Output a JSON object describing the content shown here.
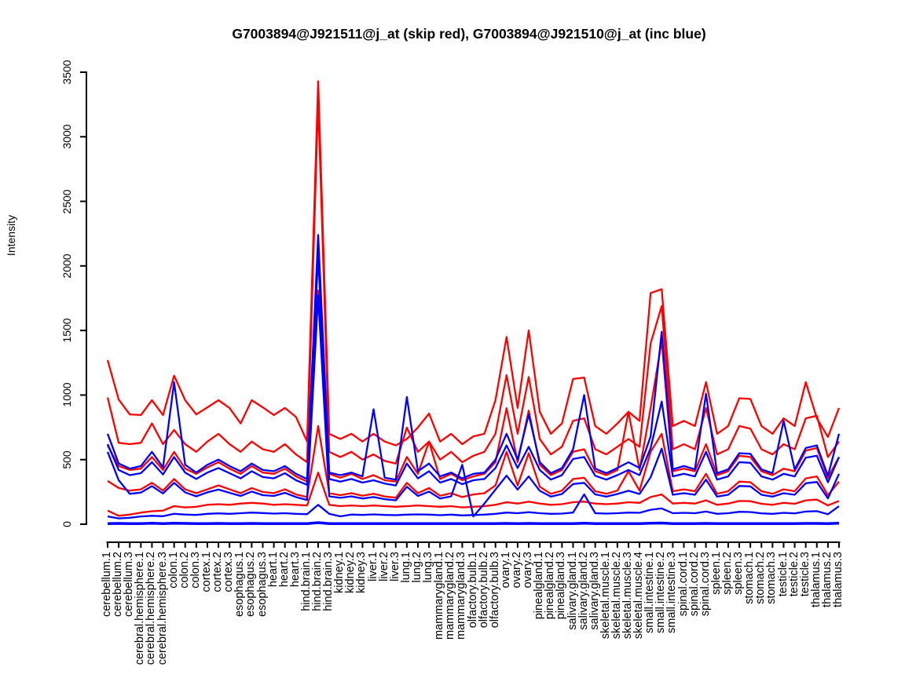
{
  "chart_data": {
    "type": "line",
    "title": "G7003894@J921511@j_at (skip red), G7003894@J921510@j_at (inc blue)",
    "ylabel": "Intensity",
    "xlabel": "",
    "ylim": [
      0,
      3500
    ],
    "yticks": [
      0,
      500,
      1000,
      1500,
      2000,
      2500,
      3000,
      3500
    ],
    "grid": false,
    "legend_position": "none",
    "red_series_probe": "G7003894@J921511@j_at (skip)",
    "blue_series_probe": "G7003894@J921510@j_at (inc)",
    "red_color": "#FF0000",
    "blue_color": "#0000FF",
    "categories": [
      "cerebellum.1",
      "cerebellum.2",
      "cerebellum.3",
      "cerebral.hemisphere.1",
      "cerebral.hemisphere.2",
      "cerebral.hemisphere.3",
      "colon.1",
      "colon.2",
      "colon.3",
      "cortex.1",
      "cortex.2",
      "cortex.3",
      "esophagus.1",
      "esophagus.2",
      "esophagus.3",
      "heart.1",
      "heart.2",
      "heart.3",
      "hind.brain.1",
      "hind.brain.2",
      "hind.brain.3",
      "kidney.1",
      "kidney.2",
      "kidney.3",
      "liver.1",
      "liver.2",
      "liver.3",
      "lung.1",
      "lung.2",
      "lung.3",
      "mammarygland.1",
      "mammarygland.2",
      "mammarygland.3",
      "olfactory.bulb.1",
      "olfactory.bulb.2",
      "olfactory.bulb.3",
      "ovary.1",
      "ovary.2",
      "ovary.3",
      "pinealgland.1",
      "pinealgland.2",
      "pinealgland.3",
      "salivary.gland.1",
      "salivary.gland.2",
      "salivary.gland.3",
      "skeletal.muscle.1",
      "skeletal.muscle.2",
      "skeletal.muscle.3",
      "skeletal.muscle.4",
      "small.intestine.1",
      "small.intestine.2",
      "small.intestine.3",
      "spinal.cord.1",
      "spinal.cord.2",
      "spinal.cord.3",
      "spleen.1",
      "spleen.2",
      "spleen.3",
      "stomach.1",
      "stomach.2",
      "stomach.3",
      "testicle.1",
      "testicle.2",
      "testicle.3",
      "thalamus.1",
      "thalamus.2",
      "thalamus.3"
    ],
    "series": [
      {
        "name": "red-1",
        "color": "#FF0000",
        "values": [
          1270,
          965,
          850,
          845,
          960,
          845,
          1150,
          960,
          850,
          905,
          960,
          900,
          780,
          960,
          905,
          845,
          900,
          830,
          640,
          3430,
          700,
          660,
          700,
          640,
          700,
          640,
          610,
          660,
          750,
          857,
          640,
          700,
          620,
          680,
          700,
          960,
          1450,
          900,
          1500,
          870,
          700,
          780,
          1125,
          1135,
          760,
          700,
          780,
          870,
          800,
          1790,
          1820,
          760,
          800,
          760,
          1100,
          700,
          760,
          975,
          970,
          760,
          700,
          820,
          760,
          1100,
          820,
          675,
          900
        ]
      },
      {
        "name": "red-2",
        "color": "#FF0000",
        "values": [
          980,
          630,
          620,
          630,
          780,
          620,
          730,
          620,
          560,
          640,
          700,
          620,
          560,
          640,
          580,
          560,
          620,
          540,
          480,
          3280,
          560,
          520,
          560,
          500,
          540,
          490,
          470,
          748,
          560,
          640,
          500,
          560,
          480,
          530,
          560,
          700,
          1154,
          700,
          1140,
          660,
          540,
          600,
          800,
          820,
          580,
          540,
          600,
          660,
          600,
          1400,
          1690,
          580,
          620,
          580,
          900,
          540,
          580,
          760,
          740,
          580,
          540,
          620,
          580,
          820,
          840,
          520,
          640
        ]
      },
      {
        "name": "red-3",
        "color": "#FF0000",
        "values": [
          610,
          450,
          420,
          430,
          520,
          420,
          560,
          430,
          390,
          440,
          480,
          430,
          390,
          450,
          400,
          390,
          430,
          370,
          330,
          1810,
          390,
          360,
          390,
          350,
          380,
          340,
          330,
          520,
          390,
          640,
          350,
          390,
          340,
          370,
          390,
          480,
          899,
          480,
          880,
          460,
          380,
          420,
          560,
          580,
          410,
          380,
          420,
          870,
          420,
          900,
          1420,
          410,
          430,
          410,
          620,
          380,
          410,
          530,
          520,
          410,
          380,
          430,
          410,
          570,
          590,
          360,
          520
        ]
      },
      {
        "name": "red-4",
        "color": "#FF0000",
        "values": [
          335,
          280,
          260,
          270,
          320,
          260,
          350,
          270,
          240,
          270,
          300,
          270,
          240,
          280,
          250,
          240,
          270,
          230,
          210,
          760,
          240,
          225,
          240,
          220,
          235,
          215,
          205,
          320,
          240,
          280,
          220,
          240,
          210,
          230,
          240,
          300,
          560,
          300,
          550,
          290,
          235,
          260,
          350,
          360,
          255,
          235,
          260,
          410,
          260,
          560,
          700,
          255,
          270,
          255,
          390,
          235,
          255,
          330,
          325,
          255,
          235,
          270,
          255,
          355,
          370,
          225,
          330
        ]
      },
      {
        "name": "red-5",
        "color": "#FF0000",
        "values": [
          105,
          65,
          75,
          90,
          100,
          105,
          140,
          130,
          135,
          150,
          155,
          150,
          160,
          165,
          160,
          150,
          155,
          150,
          145,
          400,
          150,
          140,
          145,
          140,
          145,
          140,
          135,
          140,
          145,
          140,
          135,
          140,
          130,
          135,
          140,
          150,
          170,
          160,
          175,
          160,
          150,
          155,
          170,
          175,
          160,
          155,
          160,
          170,
          165,
          210,
          230,
          160,
          165,
          160,
          185,
          150,
          160,
          180,
          178,
          158,
          150,
          165,
          158,
          185,
          190,
          145,
          180
        ]
      },
      {
        "name": "blue-1",
        "color": "#0000FF",
        "values": [
          700,
          470,
          430,
          450,
          560,
          440,
          1100,
          460,
          400,
          460,
          500,
          450,
          410,
          470,
          420,
          410,
          450,
          390,
          350,
          2240,
          400,
          380,
          400,
          370,
          890,
          360,
          345,
          985,
          410,
          470,
          370,
          400,
          355,
          390,
          400,
          500,
          700,
          500,
          850,
          480,
          395,
          435,
          580,
          1000,
          430,
          395,
          435,
          480,
          435,
          680,
          1490,
          425,
          450,
          425,
          1010,
          395,
          425,
          550,
          545,
          425,
          395,
          800,
          425,
          590,
          610,
          375,
          700
        ]
      },
      {
        "name": "blue-2",
        "color": "#0000FF",
        "values": [
          620,
          420,
          380,
          395,
          480,
          385,
          520,
          400,
          350,
          400,
          435,
          395,
          355,
          410,
          365,
          355,
          395,
          340,
          305,
          2080,
          350,
          330,
          350,
          322,
          340,
          315,
          300,
          470,
          355,
          410,
          322,
          350,
          310,
          340,
          350,
          435,
          610,
          435,
          600,
          420,
          345,
          380,
          505,
          520,
          375,
          345,
          380,
          420,
          380,
          590,
          950,
          370,
          390,
          370,
          560,
          345,
          370,
          480,
          475,
          370,
          345,
          390,
          370,
          515,
          530,
          325,
          520
        ]
      },
      {
        "name": "blue-3",
        "color": "#0000FF",
        "values": [
          560,
          340,
          235,
          245,
          295,
          238,
          320,
          247,
          216,
          247,
          268,
          243,
          219,
          253,
          225,
          219,
          243,
          210,
          188,
          1770,
          216,
          204,
          216,
          199,
          210,
          194,
          185,
          290,
          219,
          253,
          199,
          216,
          460,
          60,
          160,
          268,
          376,
          268,
          370,
          259,
          213,
          234,
          311,
          320,
          231,
          213,
          234,
          259,
          234,
          364,
          585,
          228,
          240,
          228,
          345,
          213,
          228,
          296,
          293,
          228,
          213,
          240,
          228,
          317,
          327,
          200,
          390
        ]
      },
      {
        "name": "blue-4",
        "color": "#0000FF",
        "values": [
          60,
          45,
          50,
          60,
          65,
          62,
          80,
          75,
          72,
          80,
          84,
          80,
          85,
          90,
          86,
          82,
          85,
          80,
          78,
          150,
          80,
          61,
          75,
          72,
          76,
          72,
          70,
          74,
          76,
          74,
          70,
          74,
          68,
          71,
          74,
          80,
          90,
          85,
          93,
          85,
          80,
          82,
          90,
          231,
          85,
          82,
          85,
          90,
          88,
          112,
          122,
          85,
          88,
          85,
          98,
          80,
          85,
          96,
          94,
          84,
          80,
          88,
          84,
          98,
          101,
          77,
          140
        ]
      },
      {
        "name": "blue-5",
        "color": "#0000FF",
        "values": [
          5,
          6,
          4,
          5,
          7,
          5,
          8,
          6,
          5,
          5,
          6,
          5,
          5,
          6,
          5,
          5,
          5,
          5,
          4,
          12,
          5,
          4,
          5,
          4,
          5,
          4,
          4,
          5,
          5,
          5,
          4,
          5,
          4,
          4,
          5,
          5,
          6,
          5,
          6,
          5,
          5,
          5,
          5,
          7,
          5,
          5,
          5,
          5,
          5,
          8,
          9,
          5,
          5,
          5,
          6,
          4,
          5,
          5,
          5,
          5,
          4,
          5,
          5,
          6,
          6,
          4,
          7
        ]
      }
    ]
  }
}
